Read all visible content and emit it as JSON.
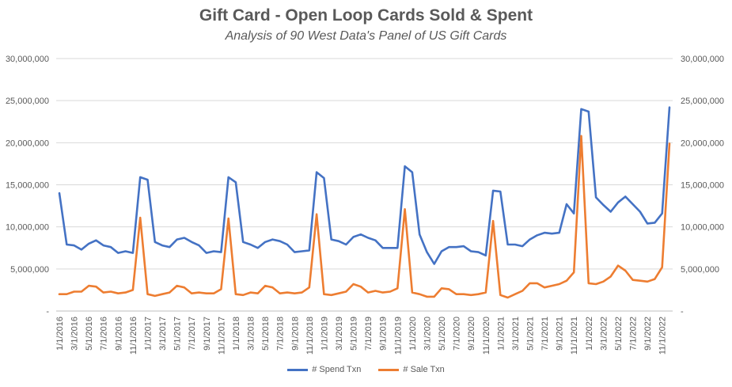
{
  "chart_data": {
    "type": "line",
    "title": "Gift Card - Open Loop Cards Sold & Spent",
    "subtitle": "Analysis of 90 West Data's Panel of US Gift Cards",
    "xlabel": "",
    "ylabel": "",
    "ylim": [
      0,
      30000000
    ],
    "y_ticks": [
      "-",
      "5,000,000",
      "10,000,000",
      "15,000,000",
      "20,000,000",
      "25,000,000",
      "30,000,000"
    ],
    "y_tick_values": [
      0,
      5000000,
      10000000,
      15000000,
      20000000,
      25000000,
      30000000
    ],
    "x_tick_labels": [
      "1/1/2016",
      "3/1/2016",
      "5/1/2016",
      "7/1/2016",
      "9/1/2016",
      "11/1/2016",
      "1/1/2017",
      "3/1/2017",
      "5/1/2017",
      "7/1/2017",
      "9/1/2017",
      "11/1/2017",
      "1/1/2018",
      "3/1/2018",
      "5/1/2018",
      "7/1/2018",
      "9/1/2018",
      "11/1/2018",
      "1/1/2019",
      "3/1/2019",
      "5/1/2019",
      "7/1/2019",
      "9/1/2019",
      "11/1/2019",
      "1/1/2020",
      "3/1/2020",
      "5/1/2020",
      "7/1/2020",
      "9/1/2020",
      "11/1/2020",
      "1/1/2021",
      "3/1/2021",
      "5/1/2021",
      "7/1/2021",
      "9/1/2021",
      "11/1/2021",
      "1/1/2022",
      "3/1/2022",
      "5/1/2022",
      "7/1/2022",
      "9/1/2022",
      "11/1/2022"
    ],
    "series": [
      {
        "name": "# Spend Txn",
        "color": "#4472C4",
        "values": [
          14000000,
          7900000,
          7800000,
          7300000,
          8000000,
          8400000,
          7800000,
          7600000,
          6900000,
          7100000,
          6900000,
          15900000,
          15600000,
          8200000,
          7800000,
          7600000,
          8500000,
          8700000,
          8200000,
          7800000,
          6900000,
          7100000,
          7000000,
          15900000,
          15300000,
          8200000,
          7900000,
          7500000,
          8200000,
          8500000,
          8300000,
          7900000,
          7000000,
          7100000,
          7200000,
          16500000,
          15800000,
          8500000,
          8300000,
          7900000,
          8800000,
          9100000,
          8700000,
          8400000,
          7500000,
          7500000,
          7500000,
          17200000,
          16500000,
          9100000,
          7000000,
          5600000,
          7100000,
          7600000,
          7600000,
          7700000,
          7100000,
          7000000,
          6600000,
          14300000,
          14200000,
          7900000,
          7900000,
          7700000,
          8500000,
          9000000,
          9300000,
          9200000,
          9300000,
          12700000,
          11600000,
          24000000,
          23700000,
          13500000,
          12600000,
          11800000,
          12900000,
          13600000,
          12700000,
          11800000,
          10400000,
          10500000,
          11600000,
          24200000
        ]
      },
      {
        "name": "# Sale Txn",
        "color": "#ED7D31",
        "values": [
          2000000,
          2000000,
          2300000,
          2300000,
          3000000,
          2900000,
          2200000,
          2300000,
          2100000,
          2200000,
          2500000,
          11100000,
          2000000,
          1800000,
          2000000,
          2200000,
          3000000,
          2800000,
          2100000,
          2200000,
          2100000,
          2100000,
          2600000,
          11000000,
          2000000,
          1900000,
          2200000,
          2100000,
          3000000,
          2800000,
          2100000,
          2200000,
          2100000,
          2200000,
          2800000,
          11500000,
          2000000,
          1900000,
          2100000,
          2300000,
          3200000,
          2900000,
          2200000,
          2400000,
          2200000,
          2300000,
          2700000,
          12100000,
          2200000,
          2000000,
          1700000,
          1700000,
          2700000,
          2600000,
          2000000,
          2000000,
          1900000,
          2000000,
          2200000,
          10700000,
          1900000,
          1600000,
          2000000,
          2400000,
          3300000,
          3300000,
          2800000,
          3000000,
          3200000,
          3600000,
          4600000,
          20800000,
          3300000,
          3200000,
          3500000,
          4100000,
          5400000,
          4800000,
          3700000,
          3600000,
          3500000,
          3800000,
          5200000,
          19900000
        ]
      }
    ],
    "legend_position": "bottom",
    "grid": true
  }
}
